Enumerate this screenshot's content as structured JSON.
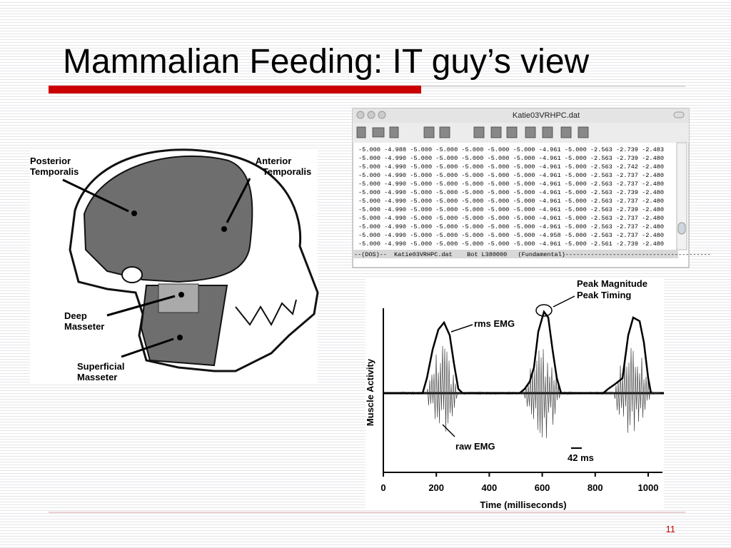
{
  "slide": {
    "title": "Mammalian Feeding: IT guy’s view",
    "page_number": "11"
  },
  "skull": {
    "labels": [
      {
        "lines": [
          "Posterior",
          "Temporalis"
        ]
      },
      {
        "lines": [
          "Anterior",
          "Temporalis"
        ]
      },
      {
        "lines": [
          "Deep",
          "Masseter"
        ]
      },
      {
        "lines": [
          "Superficial",
          "Masseter"
        ]
      }
    ]
  },
  "window": {
    "title": "Katie03VRHPC.dat",
    "rows": [
      "-5.000  -4.988  -5.000  -5.000  -5.000  -5.000  -5.000  -4.961  -5.000  -2.563  -2.739  -2.483",
      "-5.000  -4.990  -5.000  -5.000  -5.000  -5.000  -5.000  -4.961  -5.000  -2.563  -2.739  -2.480",
      "-5.000  -4.990  -5.000  -5.000  -5.000  -5.000  -5.000  -4.961  -5.000  -2.563  -2.742  -2.480",
      "-5.000  -4.990  -5.000  -5.000  -5.000  -5.000  -5.000  -4.961  -5.000  -2.563  -2.737  -2.480",
      "-5.000  -4.990  -5.000  -5.000  -5.000  -5.000  -5.000  -4.961  -5.000  -2.563  -2.737  -2.480",
      "-5.000  -4.990  -5.000  -5.000  -5.000  -5.000  -5.000  -4.961  -5.000  -2.563  -2.739  -2.480",
      "-5.000  -4.990  -5.000  -5.000  -5.000  -5.000  -5.000  -4.961  -5.000  -2.563  -2.737  -2.480",
      "-5.000  -4.990  -5.000  -5.000  -5.000  -5.000  -5.000  -4.961  -5.000  -2.563  -2.739  -2.480",
      "-5.000  -4.990  -5.000  -5.000  -5.000  -5.000  -5.000  -4.961  -5.000  -2.563  -2.737  -2.480",
      "-5.000  -4.990  -5.000  -5.000  -5.000  -5.000  -5.000  -4.961  -5.000  -2.563  -2.737  -2.480",
      "-5.000  -4.990  -5.000  -5.000  -5.000  -5.000  -5.000  -4.958  -5.000  -2.563  -2.737  -2.480",
      "-5.000  -4.990  -5.000  -5.000  -5.000  -5.000  -5.000  -4.961  -5.000  -2.561  -2.739  -2.480"
    ],
    "status": "--(DOS)--  Katie03VRHPC.dat    Bot L380000   (Fundamental)----------------------------------------"
  },
  "emg": {
    "y_label": "Muscle Activity",
    "x_label": "Time (milliseconds)",
    "xlim": [
      0,
      1054
    ],
    "xticks": [
      0,
      200,
      400,
      600,
      800,
      1000
    ],
    "annotations": {
      "peak": [
        "Peak Magnitude",
        "Peak Timing"
      ],
      "rms": "rms EMG",
      "raw": "raw EMG",
      "scale": "42 ms"
    }
  }
}
